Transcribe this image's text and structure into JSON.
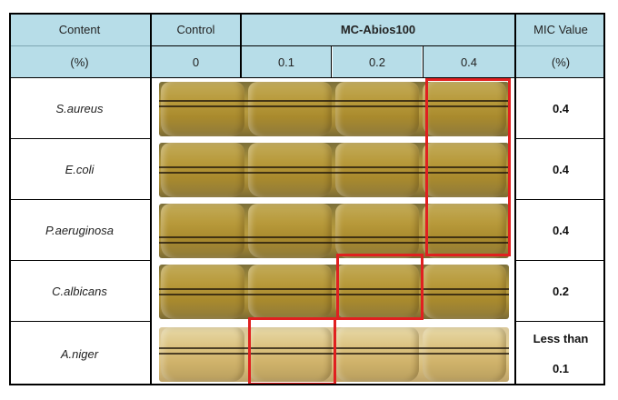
{
  "header": {
    "content_label": "Content",
    "content_unit": "(%)",
    "control_label": "Control",
    "group_label": "MC-Abios100",
    "mic_label": "MIC Value",
    "mic_unit": "(%)",
    "concentrations": [
      "0",
      "0.1",
      "0.2",
      "0.4"
    ]
  },
  "rows": [
    {
      "organism": "S.aureus",
      "mic": "0.4"
    },
    {
      "organism": "E.coli",
      "mic": "0.4"
    },
    {
      "organism": "P.aeruginosa",
      "mic": "0.4"
    },
    {
      "organism": "C.albicans",
      "mic": "0.2"
    },
    {
      "organism": "A.niger",
      "mic_line1": "Less than",
      "mic_line2": "0.1"
    }
  ],
  "colors": {
    "header_bg": "#b7dde8",
    "highlight": "#e02020"
  }
}
